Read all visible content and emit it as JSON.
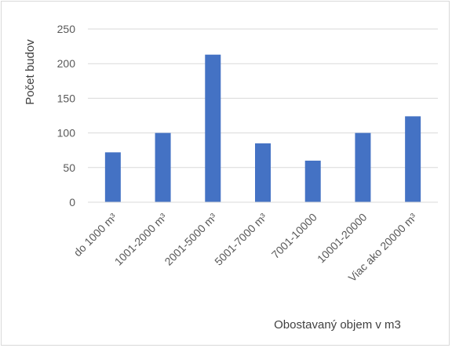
{
  "chart_data": {
    "type": "bar",
    "title": "",
    "xlabel": "Obostavaný objem v m3",
    "ylabel": "Počet budov",
    "categories": [
      "do 1000 m³",
      "1001-2000 m³",
      "2001-5000 m³",
      "5001-7000 m³",
      "7001-10000",
      "10001-20000",
      "Viac ako 20000 m³"
    ],
    "series": [
      {
        "values": [
          72,
          100,
          213,
          85,
          60,
          100,
          124
        ]
      }
    ],
    "ylim": [
      0,
      250
    ],
    "yticks": [
      "0",
      "50",
      "100",
      "150",
      "200",
      "250"
    ],
    "grid": true,
    "legend": "none",
    "bar_color": "#4472c4",
    "grid_color": "#d9d9d9"
  }
}
